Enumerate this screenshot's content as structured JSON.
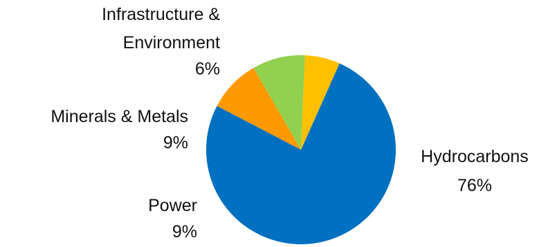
{
  "chart_data": {
    "type": "pie",
    "slices": [
      {
        "label": "Hydrocarbons",
        "value": 76,
        "value_label": "76%",
        "color": "#0070c0"
      },
      {
        "label": "Power",
        "value": 9,
        "value_label": "9%",
        "color": "#ff9900"
      },
      {
        "label": "Minerals & Metals",
        "value": 9,
        "value_label": "9%",
        "color": "#92d050"
      },
      {
        "label": "Infrastructure & Environment",
        "label_lines": [
          "Infrastructure &",
          "Environment"
        ],
        "value": 6,
        "value_label": "6%",
        "color": "#ffc000"
      }
    ],
    "start_angle_deg": 24,
    "direction": "clockwise",
    "legend": "none"
  }
}
